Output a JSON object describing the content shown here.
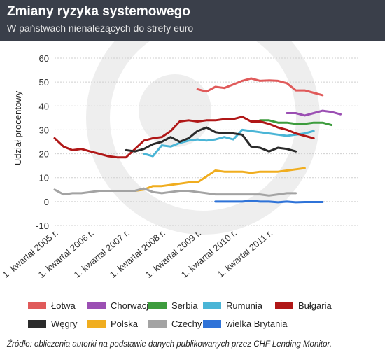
{
  "header": {
    "title": "Zmiany ryzyka systemowego",
    "subtitle": "W państwach nienależących do strefy euro"
  },
  "source": "Źródło: obliczenia autorki na podstawie danych publikowanych przez CHF Lending Monitor.",
  "colors": {
    "header_bg": "#3a3f4a",
    "watermark": "#eeeeee"
  },
  "chart_data": {
    "type": "line",
    "title": "Zmiany ryzyka systemowego",
    "subtitle": "W państwach nienależących do strefy euro",
    "xlabel": "",
    "ylabel": "Udział procentowy",
    "ylim": [
      -10,
      60
    ],
    "yticks": [
      -10,
      0,
      10,
      20,
      30,
      40,
      50,
      60
    ],
    "x": [
      0,
      1,
      2,
      3,
      4,
      5,
      6,
      7,
      8,
      9,
      10,
      11,
      12,
      13,
      14,
      15,
      16,
      17,
      18,
      19,
      20,
      21,
      22,
      23,
      24,
      25,
      26,
      27,
      28,
      29,
      30,
      31,
      32,
      33,
      34
    ],
    "x_tick_positions": [
      0,
      4,
      8,
      12,
      16,
      20,
      24
    ],
    "x_tick_labels": [
      "1. kwartał 2005 r.",
      "1. kwartał 2006 r.",
      "1. kwartał 2007 r.",
      "1. kwartał 2008 r.",
      "1. kwartał 2009 r.",
      "1. kwartał 2010 r.",
      "1. kwartał 2011 r."
    ],
    "grid": true,
    "legend_position": "bottom",
    "series": [
      {
        "name": "Łotwa",
        "color": "#e05a5a",
        "values": [
          null,
          null,
          null,
          null,
          null,
          null,
          null,
          null,
          null,
          null,
          null,
          null,
          null,
          null,
          null,
          null,
          47,
          46,
          48,
          47.5,
          49,
          50.5,
          51.5,
          50.5,
          50.7,
          50.5,
          49.5,
          46.5,
          46.5,
          45.5,
          44.5,
          null,
          null,
          null,
          null
        ]
      },
      {
        "name": "Chorwacja",
        "color": "#9b4fb3",
        "values": [
          null,
          null,
          null,
          null,
          null,
          null,
          null,
          null,
          null,
          null,
          null,
          null,
          null,
          null,
          null,
          null,
          null,
          null,
          null,
          null,
          null,
          null,
          null,
          null,
          null,
          null,
          37,
          37,
          36,
          37,
          38,
          37.5,
          36.5,
          null,
          null
        ]
      },
      {
        "name": "Serbia",
        "color": "#3d9c3d",
        "values": [
          null,
          null,
          null,
          null,
          null,
          null,
          null,
          null,
          null,
          null,
          null,
          null,
          null,
          null,
          null,
          null,
          null,
          null,
          null,
          null,
          null,
          null,
          null,
          34,
          34,
          33,
          33,
          32.5,
          32.5,
          33,
          33,
          32,
          null,
          null,
          null
        ]
      },
      {
        "name": "Rumunia",
        "color": "#4ab5d6",
        "values": [
          null,
          null,
          null,
          null,
          null,
          null,
          null,
          null,
          null,
          null,
          20,
          19,
          23.5,
          23,
          24.5,
          25.5,
          26,
          25.5,
          26,
          27,
          26,
          30,
          29.5,
          29,
          28.5,
          28,
          27.5,
          28,
          28.5,
          29.5,
          null,
          null,
          null,
          null,
          null
        ]
      },
      {
        "name": "Bułgaria",
        "color": "#b01717",
        "values": [
          26.5,
          23,
          21.5,
          22,
          21,
          20,
          19,
          18.5,
          18.5,
          22,
          25.5,
          26.5,
          27,
          29.5,
          33.5,
          34,
          33.5,
          34,
          34,
          34.5,
          34.5,
          35.5,
          33.5,
          33.5,
          32.5,
          31,
          30,
          28.5,
          27.5,
          26.5,
          null,
          null,
          null,
          null,
          null
        ]
      },
      {
        "name": "Węgry",
        "color": "#2b2b2b",
        "values": [
          null,
          null,
          null,
          null,
          null,
          null,
          null,
          null,
          21.5,
          21,
          22,
          24,
          25,
          27,
          25,
          26.5,
          29.5,
          31,
          29,
          28.5,
          28.5,
          28,
          23,
          22.5,
          21,
          22.5,
          22,
          21,
          null,
          null,
          null,
          null,
          null,
          null,
          null
        ]
      },
      {
        "name": "Polska",
        "color": "#f0ad1f",
        "values": [
          null,
          null,
          null,
          null,
          null,
          null,
          null,
          null,
          null,
          4.5,
          5,
          6.5,
          6.5,
          7,
          7.5,
          8,
          8,
          10.5,
          13,
          12.5,
          12.5,
          12.5,
          12,
          12.5,
          12.5,
          12.5,
          13,
          13.5,
          14,
          null,
          null,
          null,
          null,
          null,
          null
        ]
      },
      {
        "name": "Czechy",
        "color": "#a3a3a3",
        "values": [
          5,
          3,
          3.5,
          3.5,
          4,
          4.5,
          4.5,
          4.5,
          4.5,
          4.5,
          5.5,
          4,
          3.5,
          4,
          4.5,
          4.5,
          4,
          3.5,
          3,
          3,
          3,
          3,
          3,
          3,
          2.5,
          3,
          3.5,
          3.5,
          null,
          null,
          null,
          null,
          null,
          null,
          null
        ]
      },
      {
        "name": "wielka Brytania",
        "color": "#2f73d8",
        "values": [
          null,
          null,
          null,
          null,
          null,
          null,
          null,
          null,
          null,
          null,
          null,
          null,
          null,
          null,
          null,
          null,
          null,
          null,
          0,
          0,
          0,
          0,
          0.3,
          0,
          0,
          -0.3,
          0,
          -0.3,
          -0.2,
          -0.2,
          -0.2,
          null,
          null,
          null,
          null
        ]
      }
    ]
  }
}
